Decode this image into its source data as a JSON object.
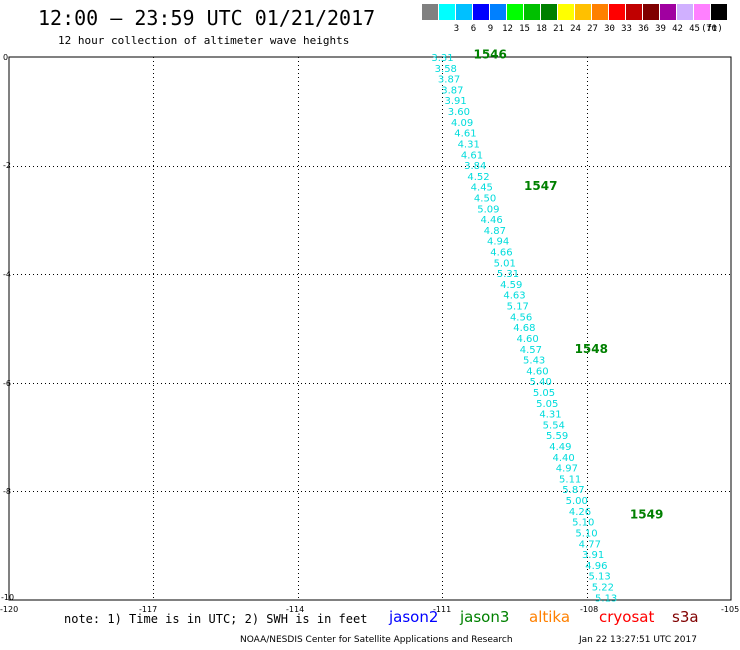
{
  "header": {
    "title": "12:00 – 23:59 UTC 01/21/2017",
    "subtitle": "12 hour collection of altimeter wave heights"
  },
  "legend": {
    "unit": "(ft)",
    "items": [
      {
        "label": "",
        "color": "#808080"
      },
      {
        "label": "3",
        "color": "#00ffff"
      },
      {
        "label": "6",
        "color": "#00c0ff"
      },
      {
        "label": "9",
        "color": "#0000ff"
      },
      {
        "label": "12",
        "color": "#0080ff"
      },
      {
        "label": "15",
        "color": "#00ff00"
      },
      {
        "label": "18",
        "color": "#00c000"
      },
      {
        "label": "21",
        "color": "#008000"
      },
      {
        "label": "24",
        "color": "#ffff00"
      },
      {
        "label": "27",
        "color": "#ffc000"
      },
      {
        "label": "30",
        "color": "#ff8000"
      },
      {
        "label": "33",
        "color": "#ff0000"
      },
      {
        "label": "36",
        "color": "#c00000"
      },
      {
        "label": "39",
        "color": "#800000"
      },
      {
        "label": "42",
        "color": "#a000a0"
      },
      {
        "label": "45",
        "color": "#d0b0ff"
      },
      {
        "label": "70",
        "color": "#ff80ff"
      },
      {
        "label": "",
        "color": "#000000"
      }
    ]
  },
  "map": {
    "lon_ticks": [
      "-120",
      "-117",
      "-114",
      "-111",
      "-108",
      "-105"
    ],
    "lat_ticks": [
      "0",
      "-2",
      "-4",
      "-6",
      "-8",
      "-10"
    ],
    "lon_range": [
      -120,
      -105
    ],
    "lat_range": [
      -10,
      0
    ],
    "lon_grid": [
      -117,
      -114,
      -111,
      -108
    ],
    "lat_grid": [
      -2,
      -4,
      -6,
      -8
    ],
    "track_color": "#00dcdc",
    "pass_color": "#008000",
    "swh_values": [
      "3.31",
      "3.58",
      "3.87",
      "3.87",
      "3.91",
      "3.60",
      "4.09",
      "4.61",
      "4.31",
      "4.61",
      "3.84",
      "4.52",
      "4.45",
      "4.50",
      "5.09",
      "4.46",
      "4.87",
      "4.94",
      "4.66",
      "5.01",
      "5.31",
      "4.59",
      "4.63",
      "5.17",
      "4.56",
      "4.68",
      "4.60",
      "4.57",
      "5.43",
      "4.60",
      "5.40",
      "5.05",
      "5.05",
      "4.31",
      "5.54",
      "5.59",
      "4.49",
      "4.40",
      "4.97",
      "5.11",
      "5.87",
      "5.00",
      "4.26",
      "5.10",
      "5.10",
      "4.77",
      "3.91",
      "4.96",
      "5.13",
      "5.22",
      "5.13"
    ],
    "pass_labels": [
      {
        "label": "1546",
        "lon": -110.35,
        "lat": 0.05
      },
      {
        "label": "1547",
        "lon": -109.3,
        "lat": -2.38
      },
      {
        "label": "1548",
        "lon": -108.25,
        "lat": -5.38
      },
      {
        "label": "1549",
        "lon": -107.1,
        "lat": -8.43
      }
    ]
  },
  "footer": {
    "note": "note: 1) Time is in UTC; 2) SWH is in feet",
    "satellites": [
      {
        "name": "jason2",
        "color": "#0000ff"
      },
      {
        "name": "jason3",
        "color": "#008000"
      },
      {
        "name": "altika",
        "color": "#ff8000"
      },
      {
        "name": "cryosat",
        "color": "#ff0000"
      },
      {
        "name": "s3a",
        "color": "#800000"
      }
    ],
    "credit": "NOAA/NESDIS Center for Satellite Applications and Research",
    "timestamp": "Jan 22 13:27:51 UTC 2017"
  }
}
